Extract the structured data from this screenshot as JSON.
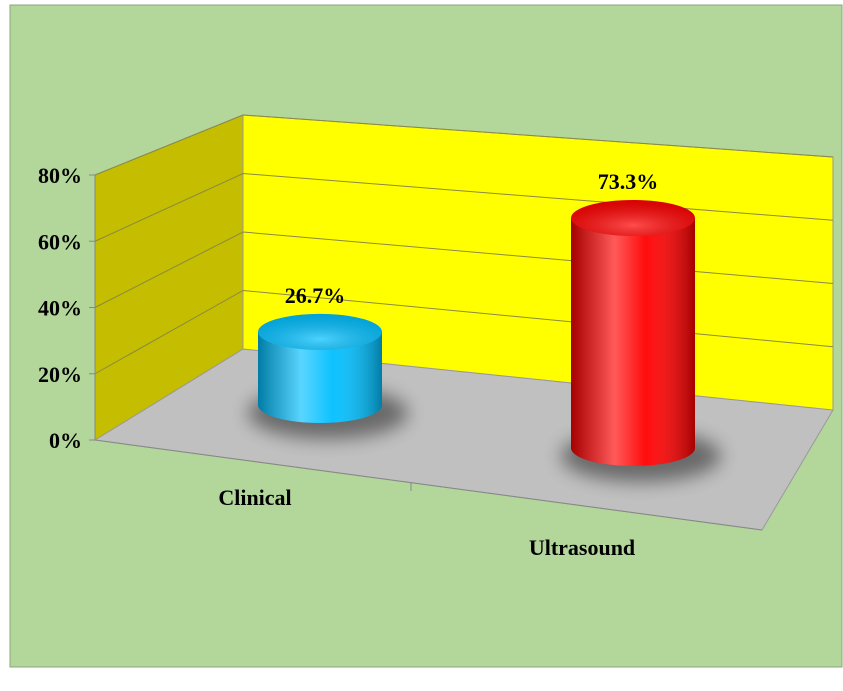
{
  "chart_data": {
    "type": "bar3d",
    "categories": [
      "Clinical",
      "Ultrasound"
    ],
    "values": [
      26.7,
      73.3
    ],
    "value_labels": [
      "26.7%",
      "73.3%"
    ],
    "colors": [
      "#00bfff",
      "#ff0000"
    ],
    "ylim": [
      0,
      80
    ],
    "yticks": [
      {
        "value": 0,
        "label": "0%"
      },
      {
        "value": 20,
        "label": "20%"
      },
      {
        "value": 40,
        "label": "40%"
      },
      {
        "value": 60,
        "label": "60%"
      },
      {
        "value": 80,
        "label": "80%"
      }
    ],
    "grid": true
  }
}
